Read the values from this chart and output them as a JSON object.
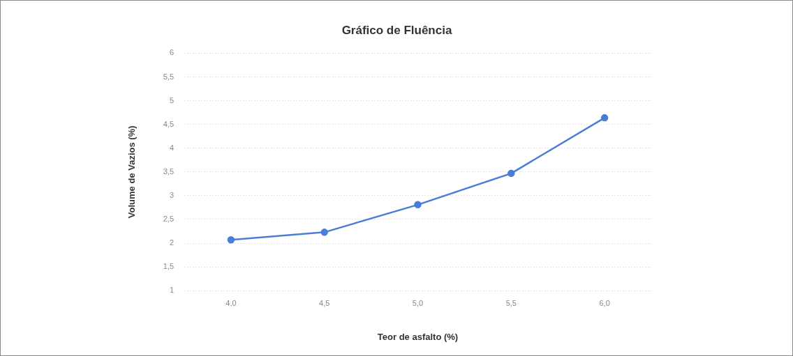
{
  "chart_data": {
    "type": "line",
    "title": "Gráfico de Fluência",
    "xlabel": "Teor de asfalto (%)",
    "ylabel": "Volume de Vazios (%)",
    "categories": [
      "4,0",
      "4,5",
      "5,0",
      "5,5",
      "6,0"
    ],
    "series": [
      {
        "color": "#4a7ed6",
        "values": [
          2.07,
          2.23,
          2.81,
          3.47,
          4.64
        ]
      }
    ],
    "ylim": [
      1,
      6
    ],
    "yticks": [
      1,
      {
        "value": 1.5,
        "label": "1,5"
      },
      2,
      {
        "value": 2.5,
        "label": "2,5"
      },
      3,
      {
        "value": 3.5,
        "label": "3,5"
      },
      4,
      {
        "value": 4.5,
        "label": "4,5"
      },
      5,
      {
        "value": 5.5,
        "label": "5,5"
      },
      6
    ],
    "grid": "y",
    "legend": false,
    "marker": "circle",
    "line_style": "solid"
  }
}
